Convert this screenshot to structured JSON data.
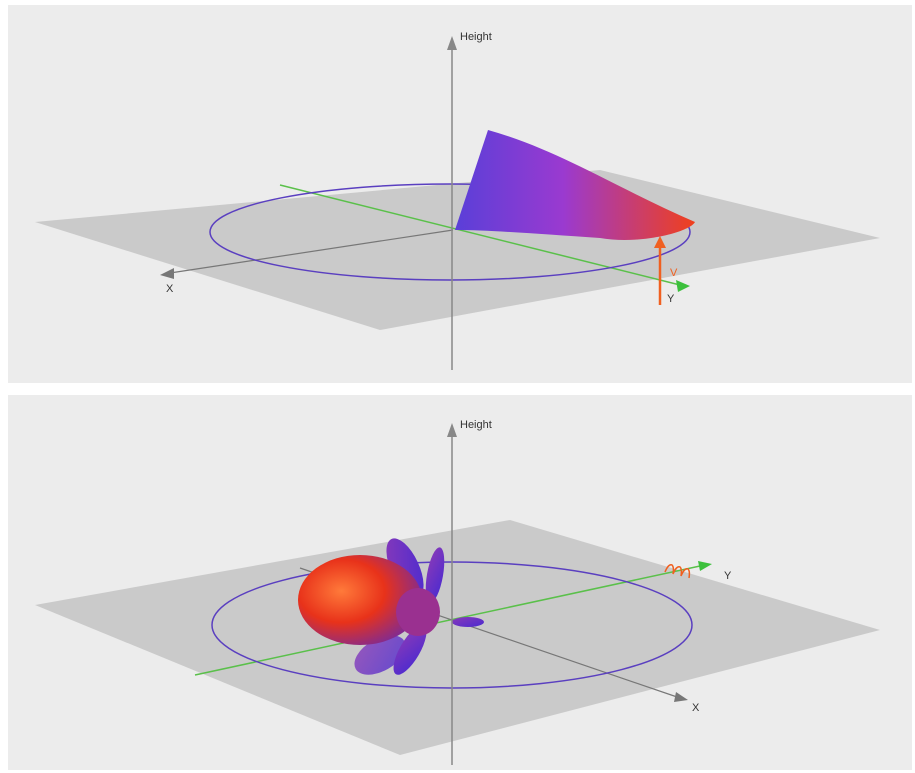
{
  "panels": [
    {
      "labels": {
        "height": "Height",
        "x": "X",
        "v": "V",
        "y": "Y"
      }
    },
    {
      "labels": {
        "height": "Height",
        "y": "Y",
        "x": "X"
      }
    }
  ]
}
